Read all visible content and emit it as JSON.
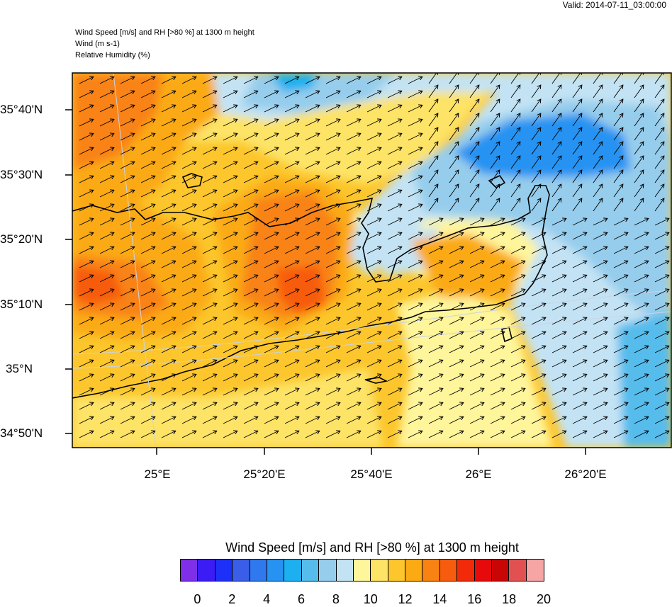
{
  "valid_label": "Valid: 2014-07-11_03:00:00",
  "header": {
    "line1": "Wind Speed [m/s] and RH [>80 %] at 1300 m height",
    "line2": "Wind   (m s-1)",
    "line3": "Relative Humidity   (%)"
  },
  "lat_labels": [
    "35°40'N",
    "35°30'N",
    "35°20'N",
    "35°10'N",
    "35°N",
    "34°50'N"
  ],
  "lon_labels": [
    "25°E",
    "25°20'E",
    "25°40'E",
    "26°E",
    "26°20'E"
  ],
  "colorbar": {
    "title": "Wind Speed [m/s] and RH [>80 %] at 1300 m height",
    "labels": [
      "0",
      "2",
      "4",
      "6",
      "8",
      "10",
      "12",
      "14",
      "16",
      "18",
      "20"
    ],
    "colors": [
      "#7f2fe8",
      "#3b1cf5",
      "#1c30f7",
      "#3a5ee8",
      "#2f78ee",
      "#2693f2",
      "#1cb0f0",
      "#56bcec",
      "#96cdec",
      "#c3e3f4",
      "#fff59b",
      "#fde366",
      "#fcc62c",
      "#fbaa14",
      "#f98312",
      "#f75c0e",
      "#f32a0a",
      "#e60a0a",
      "#c90606",
      "#e25151",
      "#f7a4a4"
    ]
  },
  "chart_data": {
    "type": "heatmap",
    "title": "Wind Speed [m/s] and RH [>80 %] at 1300 m height",
    "valid_time": "2014-07-11_03:00:00",
    "variables": [
      "Wind (m s-1)",
      "Relative Humidity (%)"
    ],
    "level": "1300 m height",
    "lat_range_deg": [
      34.8,
      35.75
    ],
    "lon_range_deg": [
      24.8,
      26.6
    ],
    "colorbar_range": [
      0,
      20
    ],
    "wind_direction": "mostly from the west-southwest (arrows point east-northeast)"
  }
}
